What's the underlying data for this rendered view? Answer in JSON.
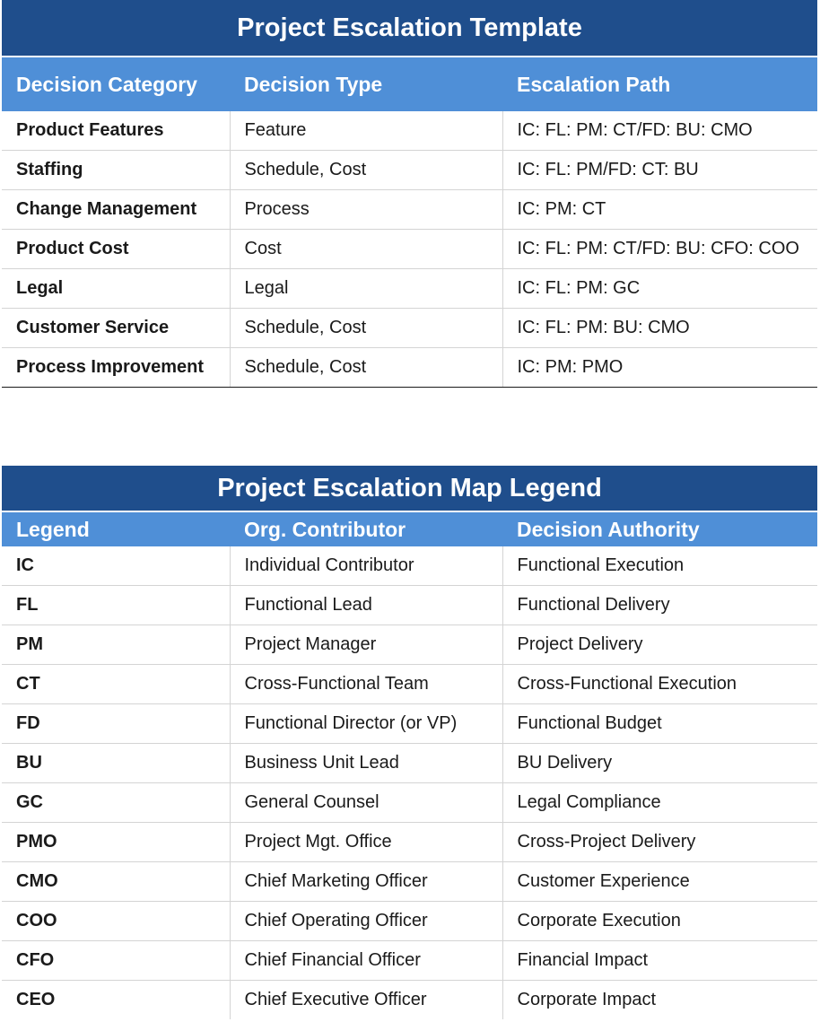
{
  "escalation_template": {
    "title": "Project Escalation Template",
    "headers": [
      "Decision Category",
      "Decision Type",
      "Escalation Path"
    ],
    "rows": [
      [
        "Product Features",
        "Feature",
        "IC: FL: PM: CT/FD: BU: CMO"
      ],
      [
        "Staffing",
        "Schedule, Cost",
        "IC: FL: PM/FD: CT: BU"
      ],
      [
        "Change Management",
        "Process",
        "IC: PM: CT"
      ],
      [
        "Product Cost",
        "Cost",
        "IC: FL: PM: CT/FD: BU: CFO: COO"
      ],
      [
        "Legal",
        "Legal",
        "IC: FL: PM: GC"
      ],
      [
        "Customer Service",
        "Schedule, Cost",
        "IC: FL: PM: BU: CMO"
      ],
      [
        "Process Improvement",
        "Schedule, Cost",
        "IC: PM: PMO"
      ]
    ]
  },
  "map_legend": {
    "title": "Project Escalation Map Legend",
    "headers": [
      "Legend",
      "Org. Contributor",
      "Decision Authority"
    ],
    "rows": [
      [
        "IC",
        "Individual Contributor",
        "Functional Execution"
      ],
      [
        "FL",
        "Functional Lead",
        "Functional Delivery"
      ],
      [
        "PM",
        "Project Manager",
        "Project Delivery"
      ],
      [
        "CT",
        "Cross-Functional Team",
        "Cross-Functional Execution"
      ],
      [
        "FD",
        "Functional Director (or VP)",
        "Functional Budget"
      ],
      [
        "BU",
        "Business Unit Lead",
        "BU Delivery"
      ],
      [
        "GC",
        "General Counsel",
        "Legal Compliance"
      ],
      [
        "PMO",
        "Project Mgt. Office",
        "Cross-Project Delivery"
      ],
      [
        "CMO",
        "Chief Marketing Officer",
        "Customer Experience"
      ],
      [
        "COO",
        "Chief Operating Officer",
        "Corporate Execution"
      ],
      [
        "CFO",
        "Chief Financial Officer",
        "Financial Impact"
      ],
      [
        "CEO",
        "Chief Executive Officer",
        "Corporate Impact"
      ]
    ]
  }
}
